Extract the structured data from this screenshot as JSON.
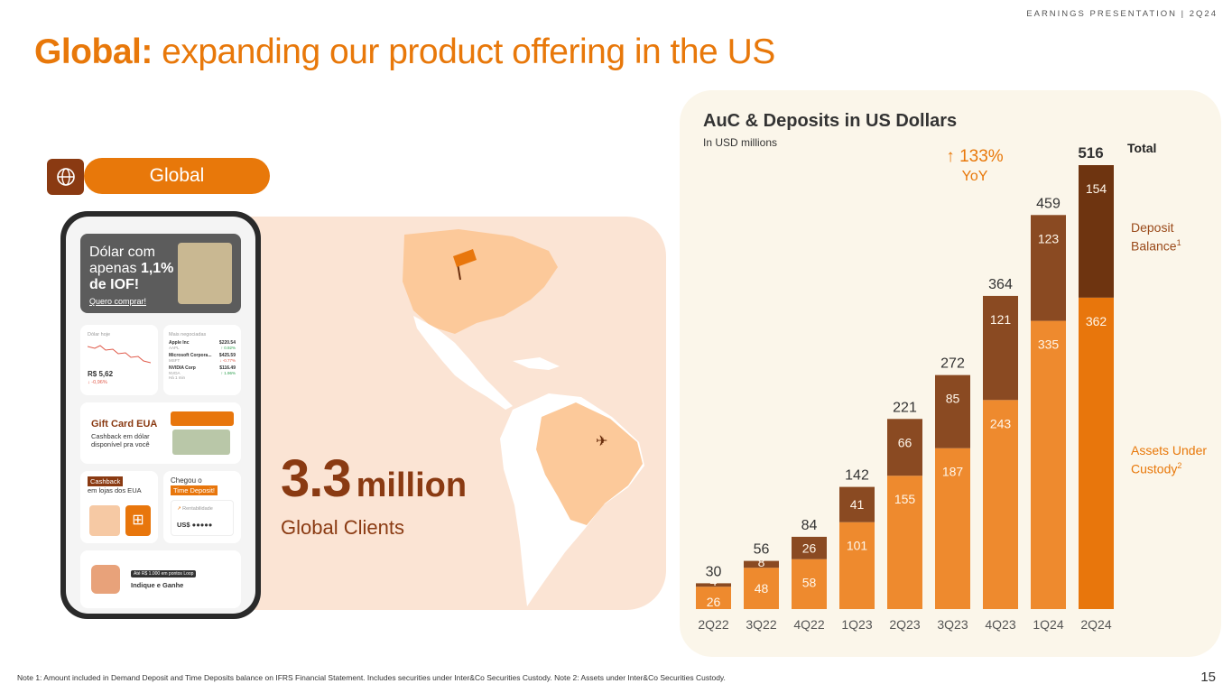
{
  "header": {
    "tag": "EARNINGS PRESENTATION | 2Q24"
  },
  "title": {
    "bold": "Global:",
    "rest": " expanding our product offering in the US"
  },
  "left": {
    "pill_label": "Global",
    "big_number": "3.3",
    "big_unit": "million",
    "clients_label": "Global Clients",
    "phone": {
      "banner_line1": "Dólar com",
      "banner_line2": "apenas ",
      "banner_pct": "1,1%",
      "banner_line3": "de IOF!",
      "banner_link": "Quero comprar!",
      "fx_label": "Dólar hoje",
      "fx_value": "R$ 5,62",
      "fx_change": "↓ -0,96%",
      "traded_label": "Mais negociadas",
      "stocks": [
        {
          "name": "Apple Inc",
          "ticker": "AAPL",
          "price": "$220.54",
          "change": "↑ 0.92%"
        },
        {
          "name": "Microsoft Corpora...",
          "ticker": "MSFT",
          "price": "$425.59",
          "change": "↓ -0.77%"
        },
        {
          "name": "NVIDIA Corp",
          "ticker": "NVDA",
          "price": "$116.49",
          "change": "↑ 1.96%"
        }
      ],
      "stocks_footer": "Há 1 min",
      "gift_title": "Gift Card EUA",
      "gift_sub1": "Cashback em dólar",
      "gift_sub2": "disponível pra você",
      "cashback_tag": "Cashback",
      "cashback_sub": "em lojas dos EUA",
      "deposit_title": "Chegou o",
      "deposit_tag": "Time Deposit!",
      "deposit_rent": "Rentabilidade",
      "deposit_value": "US$ ●●●●●",
      "loop_tag": "Até R$ 1.000 em pontos Loop",
      "loop_label": "Indique e Ganhe"
    }
  },
  "chart_panel": {
    "title": "AuC & Deposits in US Dollars",
    "subtitle": "In USD millions",
    "yoy_pct": "133%",
    "yoy_label": "YoY",
    "legend_total": "Total",
    "legend_deposit_1": "Deposit",
    "legend_deposit_2": "Balance",
    "legend_deposit_sup": "1",
    "legend_auc_1": "Assets Under",
    "legend_auc_2": "Custody",
    "legend_auc_sup": "2"
  },
  "chart_data": {
    "type": "bar",
    "stacked": true,
    "categories": [
      "2Q22",
      "3Q22",
      "4Q22",
      "1Q23",
      "2Q23",
      "3Q23",
      "4Q23",
      "1Q24",
      "2Q24"
    ],
    "series": [
      {
        "name": "Assets Under Custody",
        "values": [
          26,
          48,
          58,
          101,
          155,
          187,
          243,
          335,
          362
        ]
      },
      {
        "name": "Deposit Balance",
        "values": [
          4,
          8,
          26,
          41,
          66,
          85,
          121,
          123,
          154
        ]
      }
    ],
    "totals": [
      30,
      56,
      84,
      142,
      221,
      272,
      364,
      459,
      516
    ],
    "ylim": [
      0,
      516
    ],
    "colors": {
      "auc": "#ee8a2e",
      "auc_last": "#e8760c",
      "deposit": "#8a4a22",
      "deposit_last": "#6e3410"
    }
  },
  "footnote": "Note 1: Amount included in Demand Deposit and Time Deposits balance on IFRS Financial Statement. Includes securities under Inter&Co Securities Custody. Note 2: Assets under Inter&Co Securities Custody.",
  "page_number": "15"
}
